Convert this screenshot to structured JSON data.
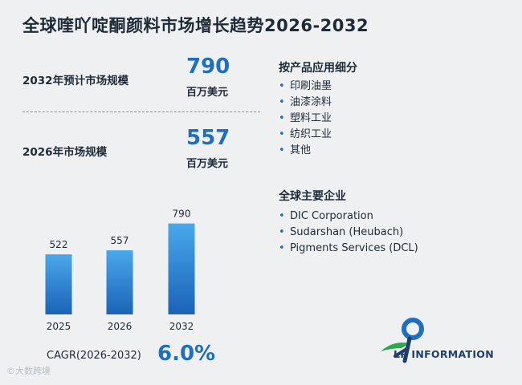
{
  "title": "全球喹吖啶酮颜料市场增长趋势2026-2032",
  "kpis": [
    {
      "label": "2032年预计市场规模",
      "value": "790",
      "unit": "百万美元"
    },
    {
      "label": "2026年市场规模",
      "value": "557",
      "unit": "百万美元"
    }
  ],
  "applications": {
    "title": "按产品应用细分",
    "items": [
      "印刷油墨",
      "油漆涂料",
      "塑料工业",
      "纺织工业",
      "其他"
    ]
  },
  "companies": {
    "title": "全球主要企业",
    "items": [
      "DIC Corporation",
      "Sudarshan (Heubach)",
      "Pigments Services (DCL)"
    ]
  },
  "cagr": {
    "label": "CAGR(2026-2032)",
    "value": "6.0%"
  },
  "logo": {
    "text": "LP INFORMATION",
    "icon": "lp-runner-logo-icon"
  },
  "watermark": "©大数跨境",
  "colors": {
    "accent": "#1e6fbf",
    "bar_top": "#4aa8ea",
    "bar_bottom": "#1a63b8"
  },
  "chart_data": {
    "type": "bar",
    "categories": [
      "2025",
      "2026",
      "2032"
    ],
    "values": [
      522,
      557,
      790
    ],
    "ylim": [
      0,
      850
    ],
    "grid": false,
    "title": "",
    "xlabel": "",
    "ylabel": ""
  }
}
